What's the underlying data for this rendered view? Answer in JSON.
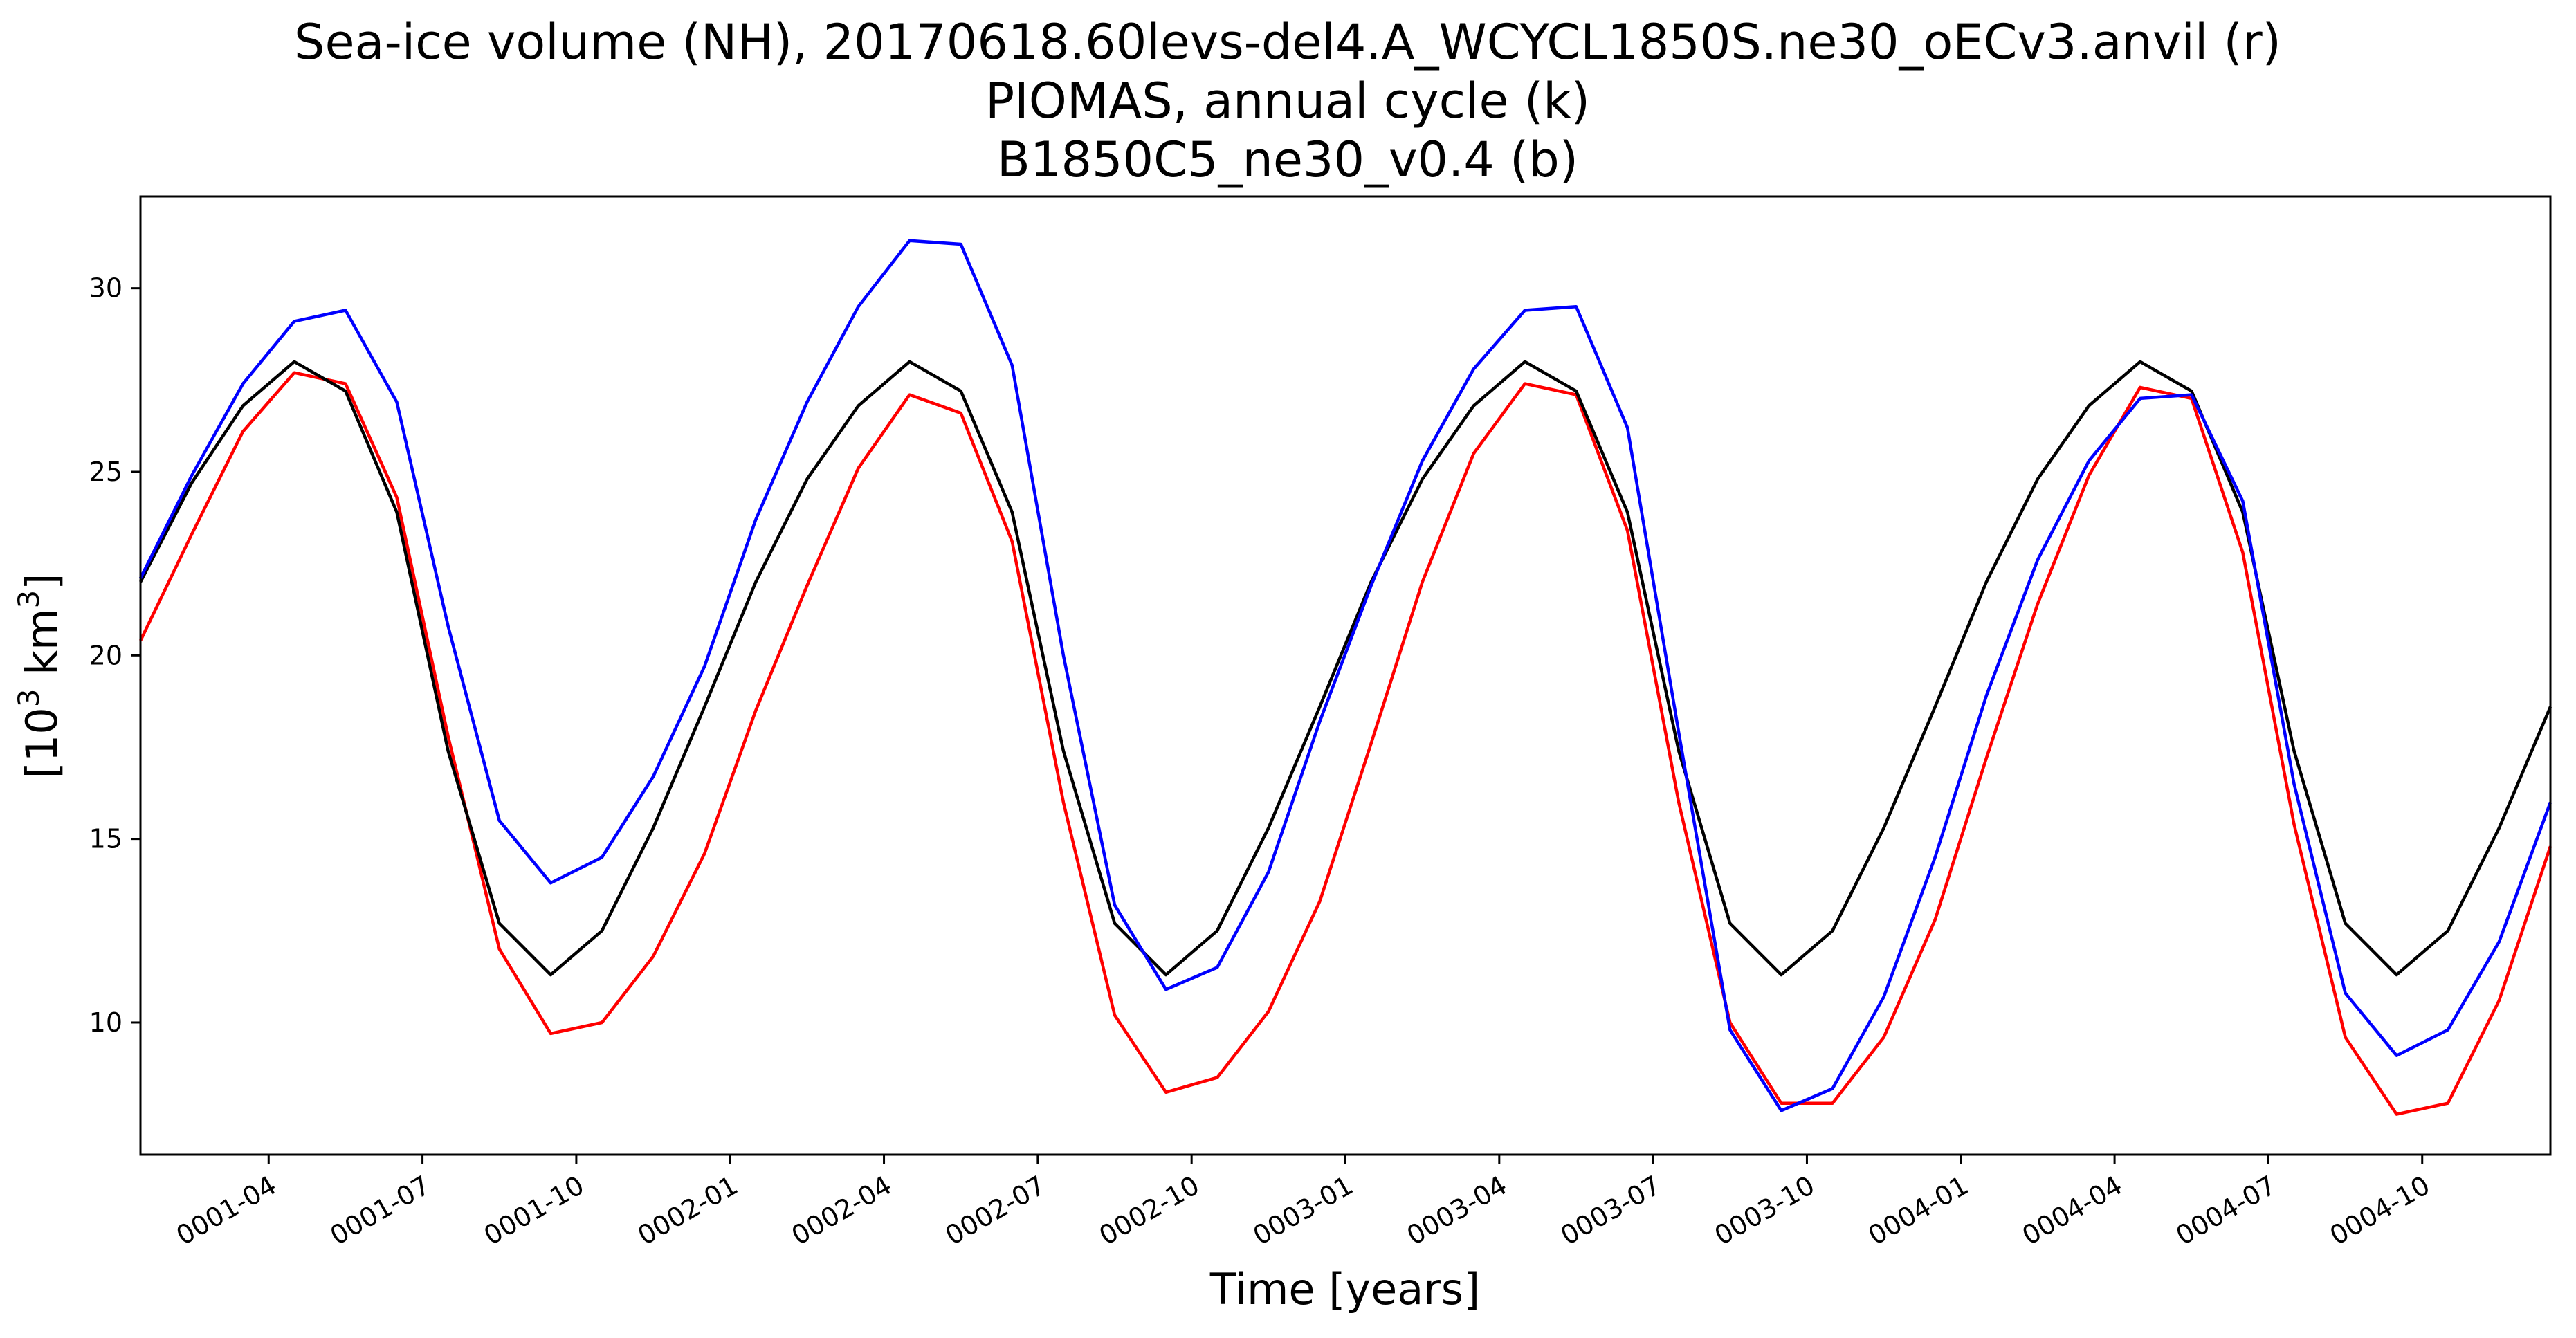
{
  "chart_data": {
    "type": "line",
    "title_lines": [
      "Sea-ice volume (NH), 20170618.60levs-del4.A_WCYCL1850S.ne30_oECv3.anvil (r)",
      "PIOMAS, annual cycle (k)",
      "B1850C5_ne30_v0.4 (b)"
    ],
    "xlabel": "Time [years]",
    "ylabel_base": "[10",
    "ylabel_exp1": "3",
    "ylabel_unit": " km",
    "ylabel_exp2": "3",
    "ylabel_close": "]",
    "xlim": [
      1,
      48
    ],
    "ylim": [
      6.4,
      32.5
    ],
    "yticks": [
      10,
      15,
      20,
      25,
      30
    ],
    "ytick_labels": [
      "10",
      "15",
      "20",
      "25",
      "30"
    ],
    "xticks": [
      3.5,
      6.5,
      9.5,
      12.5,
      15.5,
      18.5,
      21.5,
      24.5,
      27.5,
      30.5,
      33.5,
      36.5,
      39.5,
      42.5,
      45.5
    ],
    "xtick_labels": [
      "0001-04",
      "0001-07",
      "0001-10",
      "0002-01",
      "0002-04",
      "0002-07",
      "0002-10",
      "0003-01",
      "0003-04",
      "0003-07",
      "0003-10",
      "0004-01",
      "0004-04",
      "0004-07",
      "0004-10"
    ],
    "x": [
      1,
      2,
      3,
      4,
      5,
      6,
      7,
      8,
      9,
      10,
      11,
      12,
      13,
      14,
      15,
      16,
      17,
      18,
      19,
      20,
      21,
      22,
      23,
      24,
      25,
      26,
      27,
      28,
      29,
      30,
      31,
      32,
      33,
      34,
      35,
      36,
      37,
      38,
      39,
      40,
      41,
      42,
      43,
      44,
      45,
      46,
      47,
      48
    ],
    "series": [
      {
        "color": "#ff0000",
        "values": [
          20.4,
          23.3,
          26.1,
          27.7,
          27.4,
          24.3,
          17.8,
          12.0,
          9.7,
          10.0,
          11.8,
          14.6,
          18.5,
          21.9,
          25.1,
          27.1,
          26.6,
          23.1,
          16.0,
          10.2,
          8.1,
          8.5,
          10.3,
          13.3,
          17.6,
          22.0,
          25.5,
          27.4,
          27.1,
          23.4,
          16.0,
          10.0,
          7.8,
          7.8,
          9.6,
          12.8,
          17.2,
          21.4,
          24.9,
          27.3,
          27.0,
          22.8,
          15.4,
          9.6,
          7.5,
          7.8,
          10.6,
          14.8
        ]
      },
      {
        "color": "#000000",
        "values": [
          22.0,
          24.7,
          26.8,
          28.0,
          27.2,
          23.9,
          17.4,
          12.7,
          11.3,
          12.5,
          15.3,
          18.6,
          22.0,
          24.8,
          26.8,
          28.0,
          27.2,
          23.9,
          17.4,
          12.7,
          11.3,
          12.5,
          15.3,
          18.6,
          22.0,
          24.8,
          26.8,
          28.0,
          27.2,
          23.9,
          17.4,
          12.7,
          11.3,
          12.5,
          15.3,
          18.6,
          22.0,
          24.8,
          26.8,
          28.0,
          27.2,
          23.9,
          17.4,
          12.7,
          11.3,
          12.5,
          15.3,
          18.6
        ]
      },
      {
        "color": "#0000ff",
        "values": [
          22.1,
          24.9,
          27.4,
          29.1,
          29.4,
          26.9,
          20.8,
          15.5,
          13.8,
          14.5,
          16.7,
          19.7,
          23.7,
          26.9,
          29.5,
          31.3,
          31.2,
          27.9,
          20.0,
          13.2,
          10.9,
          11.5,
          14.1,
          18.2,
          21.9,
          25.3,
          27.8,
          29.4,
          29.5,
          26.2,
          17.9,
          9.8,
          7.6,
          8.2,
          10.7,
          14.5,
          18.9,
          22.6,
          25.3,
          27.0,
          27.1,
          24.2,
          16.5,
          10.8,
          9.1,
          9.8,
          12.2,
          16.0
        ]
      }
    ]
  }
}
